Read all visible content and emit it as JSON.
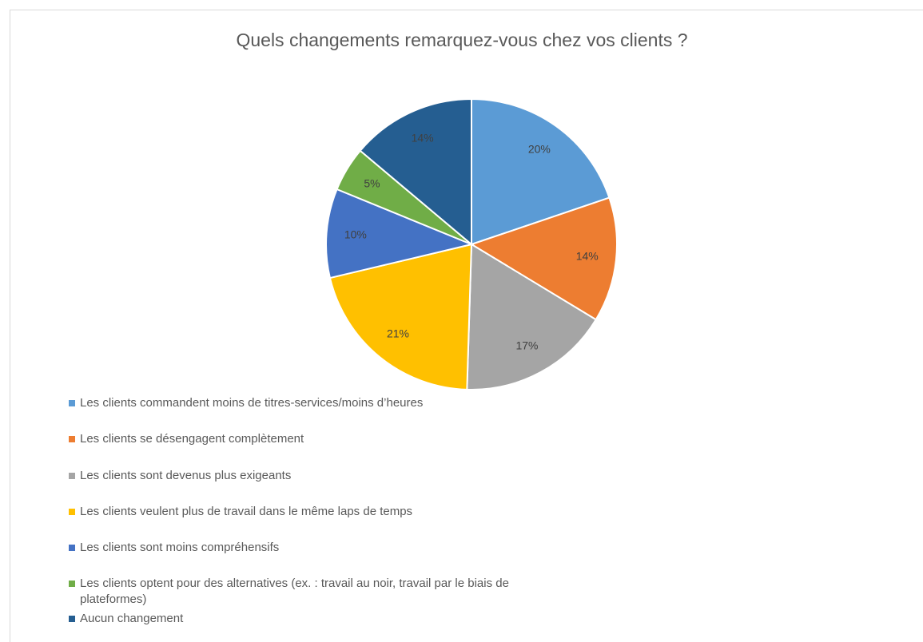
{
  "chart_data": {
    "type": "pie",
    "title": "Quels changements remarquez-vous chez vos clients ?",
    "categories": [
      "Les clients commandent moins de titres-services/moins d’heures",
      "Les clients se désengagent complètement",
      "Les clients sont devenus plus exigeants",
      "Les clients veulent plus de travail dans le même laps de temps",
      "Les clients sont moins compréhensifs",
      "Les clients optent pour des alternatives (ex. : travail au noir, travail par le biais de plateformes)",
      "Aucun changement"
    ],
    "values": [
      20,
      14,
      17,
      21,
      10,
      5,
      14
    ],
    "value_labels": [
      "20%",
      "14%",
      "17%",
      "21%",
      "10%",
      "5%",
      "14%"
    ],
    "colors": [
      "#5b9bd5",
      "#ed7d31",
      "#a5a5a5",
      "#ffc000",
      "#4472c4",
      "#70ad47",
      "#255e91"
    ],
    "legend": "bottom"
  }
}
